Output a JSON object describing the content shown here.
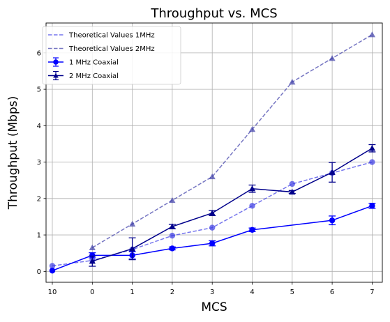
{
  "chart_data": {
    "type": "line",
    "title": "Throughput vs. MCS",
    "xlabel": "MCS",
    "ylabel": "Throughput (Mbps)",
    "categories": [
      "10",
      "0",
      "1",
      "2",
      "3",
      "4",
      "5",
      "6",
      "7"
    ],
    "ylim": [
      -0.3,
      6.82
    ],
    "yticks": [
      0,
      1,
      2,
      3,
      4,
      5,
      6
    ],
    "grid": true,
    "legend_position": "top-left",
    "series": [
      {
        "name": "Theoretical Values 1MHz",
        "style": "dashed",
        "marker": "circle",
        "color": "#3a3ae6",
        "values": [
          0.15,
          0.3,
          0.6,
          0.98,
          1.2,
          1.8,
          2.4,
          2.7,
          3.0
        ]
      },
      {
        "name": "Theoretical Values 2MHz",
        "style": "dashed",
        "marker": "triangle",
        "color": "#3c3ca8",
        "values": [
          null,
          0.65,
          1.3,
          1.95,
          2.6,
          3.9,
          5.2,
          5.85,
          6.5
        ]
      },
      {
        "name": "1 MHz Coaxial",
        "style": "solid",
        "marker": "circle",
        "color": "#0000ff",
        "values": [
          0.02,
          0.44,
          0.44,
          0.63,
          0.77,
          1.14,
          null,
          1.4,
          1.8
        ],
        "errors": [
          0.0,
          0.07,
          0.1,
          0.04,
          0.07,
          0.05,
          null,
          0.12,
          0.07
        ]
      },
      {
        "name": "2 MHz Coaxial",
        "style": "solid",
        "marker": "triangle",
        "color": "#00008b",
        "values": [
          null,
          0.28,
          0.62,
          1.23,
          1.6,
          2.27,
          2.18,
          2.72,
          3.38
        ],
        "errors": [
          null,
          0.14,
          0.3,
          0.06,
          0.07,
          0.1,
          0.04,
          0.27,
          0.1
        ]
      }
    ]
  }
}
